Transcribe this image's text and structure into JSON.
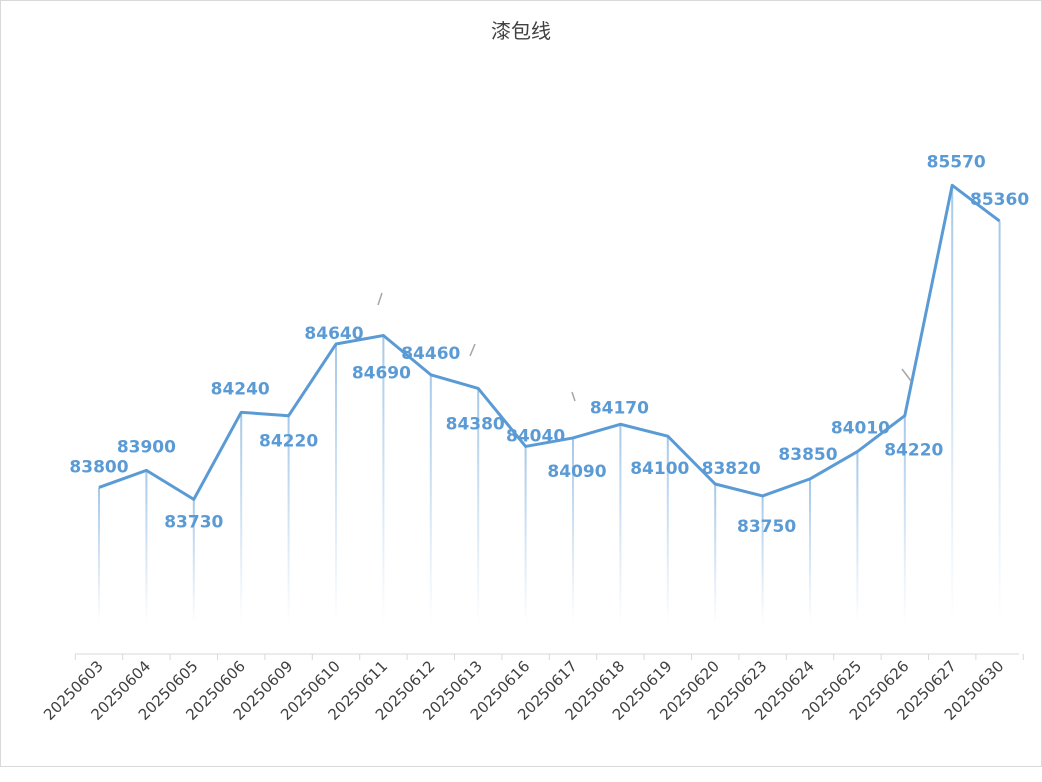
{
  "chart_data": {
    "type": "line",
    "title": "漆包线",
    "xlabel": "",
    "ylabel": "",
    "ylim": [
      83000,
      85800
    ],
    "grid": false,
    "legend": "none",
    "categories": [
      "20250603",
      "20250604",
      "20250605",
      "20250606",
      "20250609",
      "20250610",
      "20250611",
      "20250612",
      "20250613",
      "20250616",
      "20250617",
      "20250618",
      "20250619",
      "20250620",
      "20250623",
      "20250624",
      "20250625",
      "20250626",
      "20250627",
      "20250630"
    ],
    "series": [
      {
        "name": "漆包线",
        "values": [
          83800,
          83900,
          83730,
          84240,
          84220,
          84640,
          84690,
          84460,
          84380,
          84040,
          84090,
          84170,
          84100,
          83820,
          83750,
          83850,
          84010,
          84220,
          85570,
          85360
        ],
        "labels": [
          "83800",
          "83900",
          "83730",
          "84240",
          "84220",
          "84640",
          "84690",
          "84460",
          "84380",
          "84040",
          "84090",
          "84170",
          "84100",
          "83820",
          "83750",
          "83850",
          "84010",
          "84220",
          "85570",
          "85360"
        ]
      }
    ],
    "colors": {
      "line": "#5b9bd5",
      "label": "#5b9bd5",
      "axis": "#d9d9d9",
      "leader": "#a6a6a6"
    }
  }
}
